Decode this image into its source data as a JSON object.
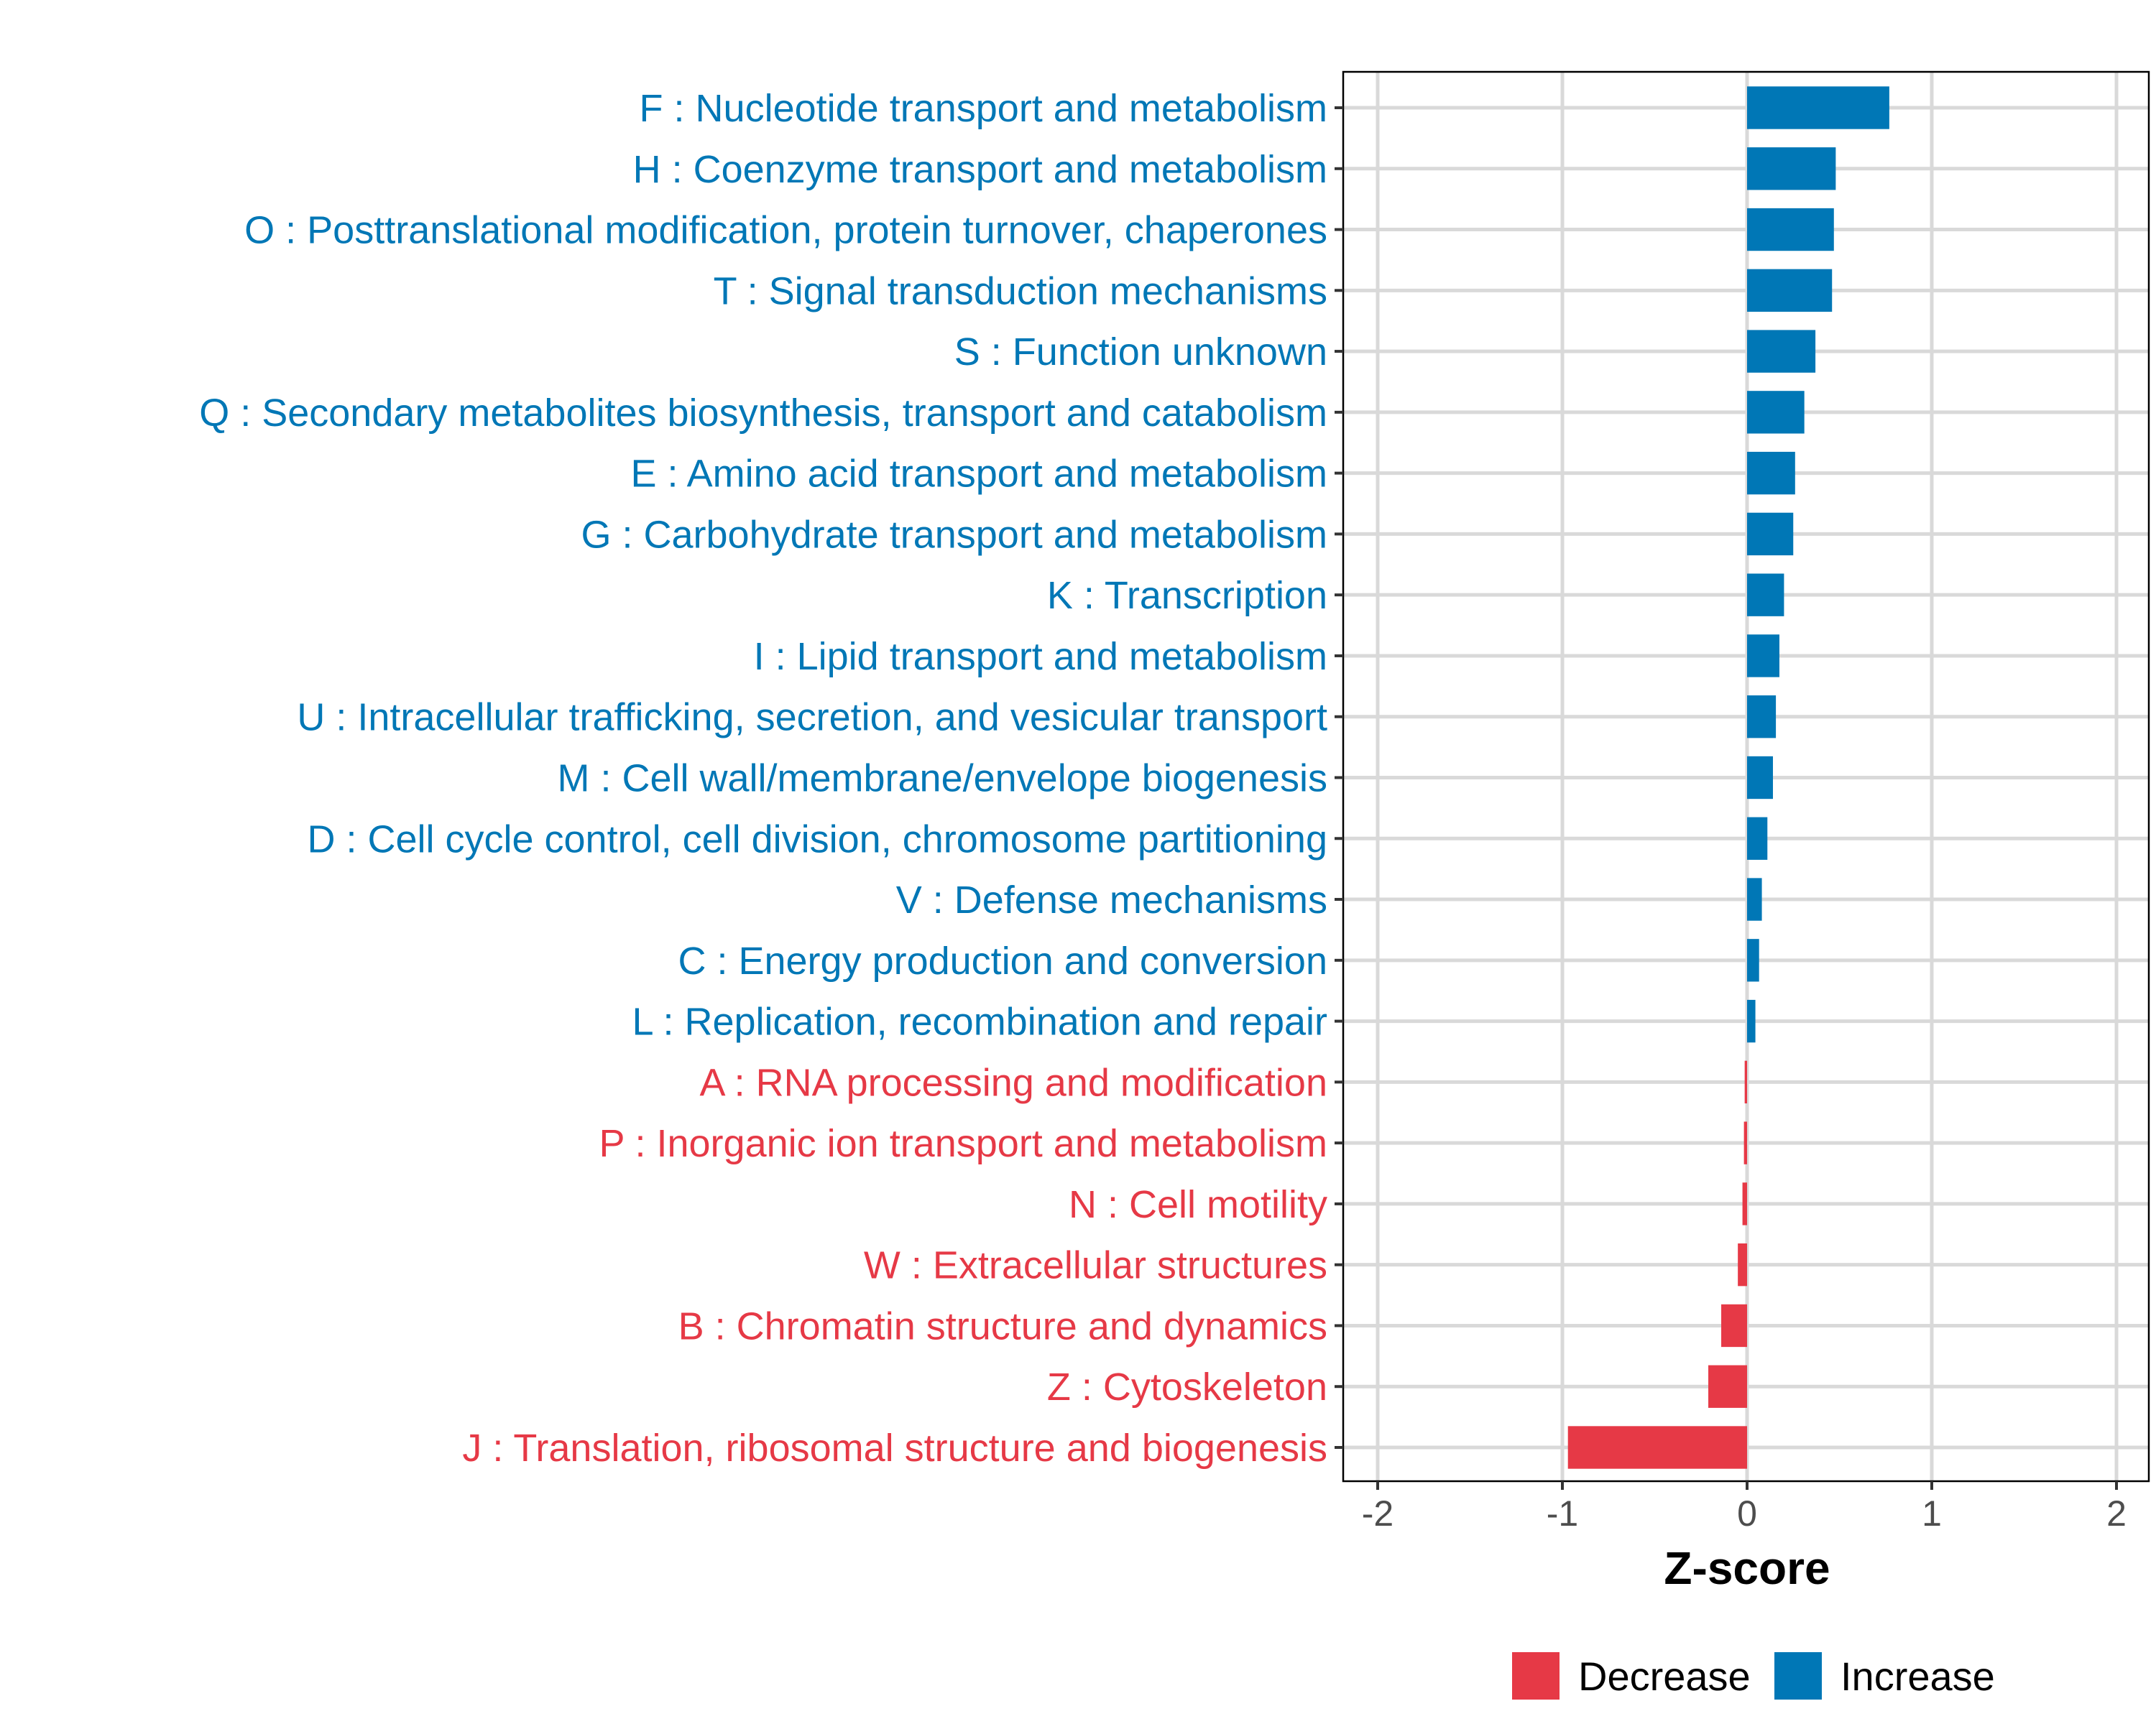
{
  "chart_data": {
    "type": "bar",
    "orientation": "horizontal",
    "title": "",
    "xlabel": "Z-score",
    "ylabel": "",
    "xlim": [
      -2.17,
      2.17
    ],
    "xticks": [
      -2,
      -1,
      0,
      1,
      2
    ],
    "grid": true,
    "legend_position": "bottom",
    "colors": {
      "Decrease": "#E63946",
      "Increase": "#0077B6"
    },
    "legend": [
      "Decrease",
      "Increase"
    ],
    "categories": [
      "F : Nucleotide transport and metabolism",
      "H : Coenzyme transport and metabolism",
      "O : Posttranslational modification, protein turnover, chaperones",
      "T : Signal transduction mechanisms",
      "S : Function unknown",
      "Q : Secondary metabolites biosynthesis, transport and catabolism",
      "E : Amino acid transport and metabolism",
      "G : Carbohydrate transport and metabolism",
      "K : Transcription",
      "I : Lipid transport and metabolism",
      "U : Intracellular trafficking, secretion, and vesicular transport",
      "M : Cell wall/membrane/envelope biogenesis",
      "D : Cell cycle control, cell division, chromosome partitioning",
      "V : Defense mechanisms",
      "C : Energy production and conversion",
      "L : Replication, recombination and repair",
      "A : RNA processing and modification",
      "P : Inorganic ion transport and metabolism",
      "N : Cell motility",
      "W : Extracellular structures",
      "B : Chromatin structure and dynamics",
      "Z : Cytoskeleton",
      "J : Translation, ribosomal structure and biogenesis"
    ],
    "values": [
      0.77,
      0.48,
      0.47,
      0.46,
      0.37,
      0.31,
      0.26,
      0.25,
      0.2,
      0.175,
      0.156,
      0.14,
      0.11,
      0.08,
      0.065,
      0.045,
      -0.013,
      -0.017,
      -0.025,
      -0.05,
      -0.14,
      -0.21,
      -0.97
    ]
  }
}
